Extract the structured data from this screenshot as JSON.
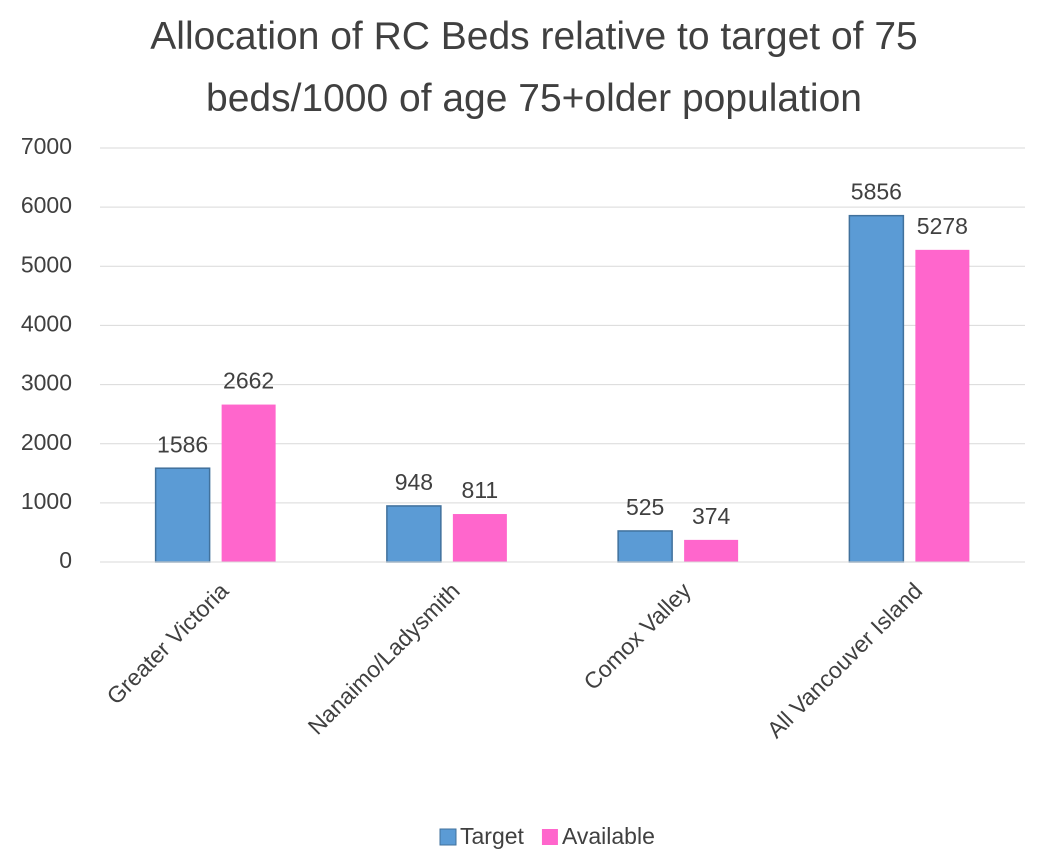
{
  "chart_data": {
    "type": "bar",
    "title": "Allocation of RC Beds relative to target of 75 beds/1000 of age 75+older population",
    "categories": [
      "Greater Victoria",
      "Nanaimo/Ladysmith",
      "Comox Valley",
      "All Vancouver Island"
    ],
    "series": [
      {
        "name": "Target",
        "color": "#5b9bd5",
        "values": [
          1586,
          948,
          525,
          5856
        ]
      },
      {
        "name": "Available",
        "color": "#ff66cc",
        "values": [
          2662,
          811,
          374,
          5278
        ]
      }
    ],
    "ylim": [
      0,
      7000
    ],
    "yticks": [
      0,
      1000,
      2000,
      3000,
      4000,
      5000,
      6000,
      7000
    ],
    "grid": true,
    "legend": "bottom"
  }
}
